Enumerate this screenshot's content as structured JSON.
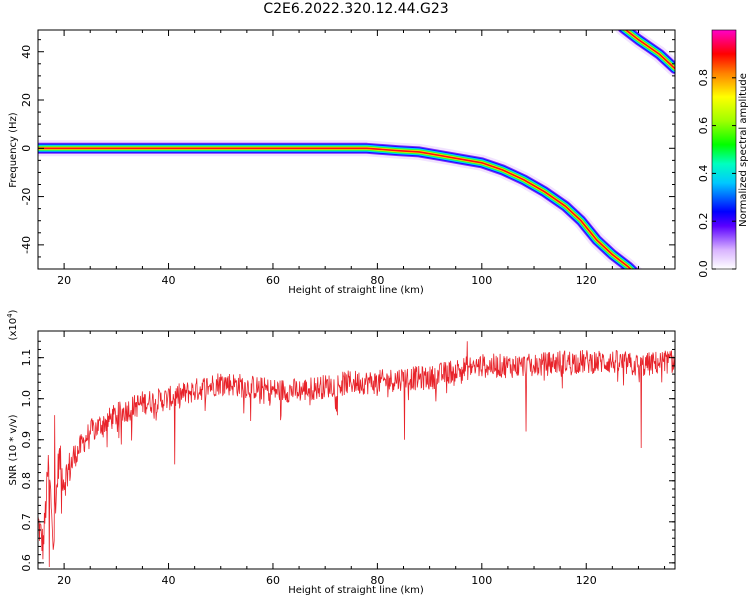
{
  "title": "C2E6.2022.320.12.44.G23",
  "chart_data": [
    {
      "type": "heatmap",
      "xlabel": "Height of straight line (km)",
      "ylabel": "Frequency (Hz)",
      "xlim": [
        15,
        137
      ],
      "ylim": [
        -50,
        49
      ],
      "xticks": [
        20,
        40,
        60,
        80,
        100,
        120
      ],
      "yticks": [
        -40,
        -20,
        0,
        20,
        40
      ],
      "colorbar": {
        "label": "Normalized spectral amplitude",
        "range": [
          0,
          1
        ],
        "ticks": [
          0.0,
          0.2,
          0.4,
          0.6,
          0.8
        ]
      },
      "ridges": [
        {
          "x": [
            15,
            78,
            84,
            88,
            92,
            96,
            100,
            104,
            108,
            112,
            116,
            119,
            122,
            125,
            128,
            131
          ],
          "y": [
            0,
            0,
            -1,
            -1.5,
            -3,
            -4.5,
            -6,
            -9,
            -13,
            -18,
            -24,
            -30,
            -38,
            -44,
            -49,
            -55
          ]
        },
        {
          "x": [
            127,
            130,
            132,
            134,
            137
          ],
          "y": [
            50,
            45,
            42,
            39,
            33
          ]
        }
      ]
    },
    {
      "type": "line",
      "xlabel": "Height of straight line (km)",
      "ylabel": "SNR (10 * v/v)",
      "ymultiplier": "(x10",
      "ymultiplier_exp": "4",
      "ymultiplier_close": ")",
      "xlim": [
        15,
        137
      ],
      "ylim": [
        0.585,
        1.165
      ],
      "xticks": [
        20,
        40,
        60,
        80,
        100,
        120
      ],
      "yticks": [
        0.6,
        0.7,
        0.8,
        0.9,
        1.0,
        1.1
      ],
      "color": "#e8232a",
      "trend": {
        "x": [
          15,
          16,
          17,
          18,
          19,
          20,
          22,
          25,
          30,
          35,
          40,
          45,
          50,
          55,
          60,
          65,
          70,
          75,
          80,
          85,
          90,
          95,
          100,
          105,
          110,
          115,
          120,
          125,
          130,
          135,
          137
        ],
        "y": [
          0.7,
          0.64,
          0.84,
          0.66,
          0.86,
          0.8,
          0.86,
          0.92,
          0.96,
          0.99,
          1.0,
          1.02,
          1.04,
          1.03,
          1.02,
          1.02,
          1.03,
          1.04,
          1.04,
          1.05,
          1.05,
          1.07,
          1.08,
          1.08,
          1.08,
          1.09,
          1.09,
          1.09,
          1.08,
          1.09,
          1.09
        ]
      },
      "dips": [
        {
          "x": 17.2,
          "y": 0.59
        },
        {
          "x": 18.2,
          "y": 0.96
        },
        {
          "x": 19.5,
          "y": 0.72
        },
        {
          "x": 41.2,
          "y": 0.84
        },
        {
          "x": 85.2,
          "y": 0.9
        },
        {
          "x": 97.2,
          "y": 1.14
        },
        {
          "x": 108.5,
          "y": 0.92
        },
        {
          "x": 130.5,
          "y": 0.88
        }
      ]
    }
  ]
}
